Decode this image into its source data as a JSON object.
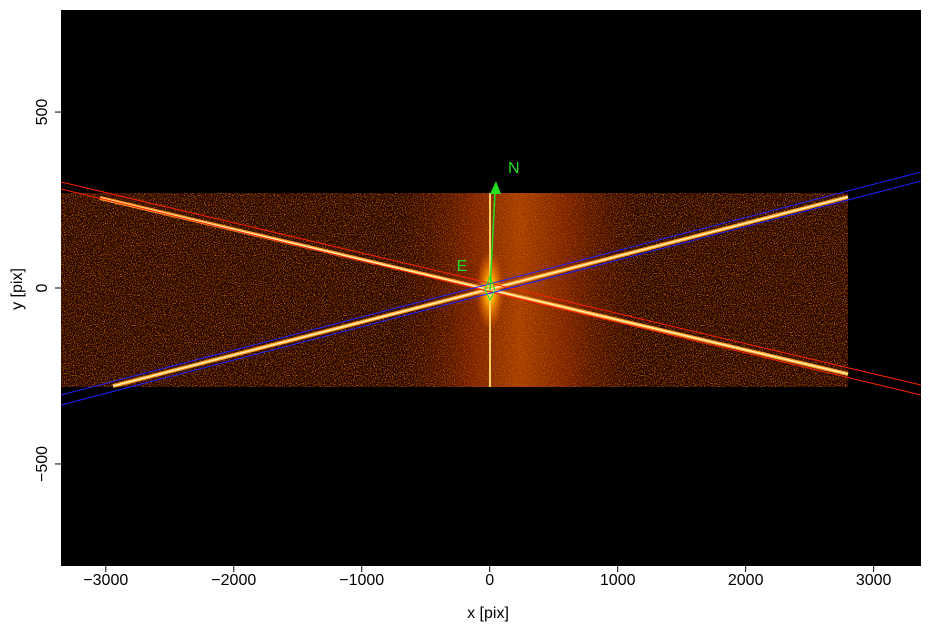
{
  "chart_data": {
    "type": "image",
    "xlabel": "x [pix]",
    "ylabel": "y [pix]",
    "annotations": [
      "N",
      "E"
    ],
    "xlim": [
      -3350,
      3370
    ],
    "ylim": [
      -790,
      790
    ],
    "xticks": [
      {
        "value": -3000,
        "label": "−3000"
      },
      {
        "value": -2000,
        "label": "−2000"
      },
      {
        "value": -1000,
        "label": "−1000"
      },
      0,
      1000,
      2000,
      3000
    ],
    "yticks": [
      {
        "value": -500,
        "label": "−500"
      },
      0,
      500
    ]
  }
}
